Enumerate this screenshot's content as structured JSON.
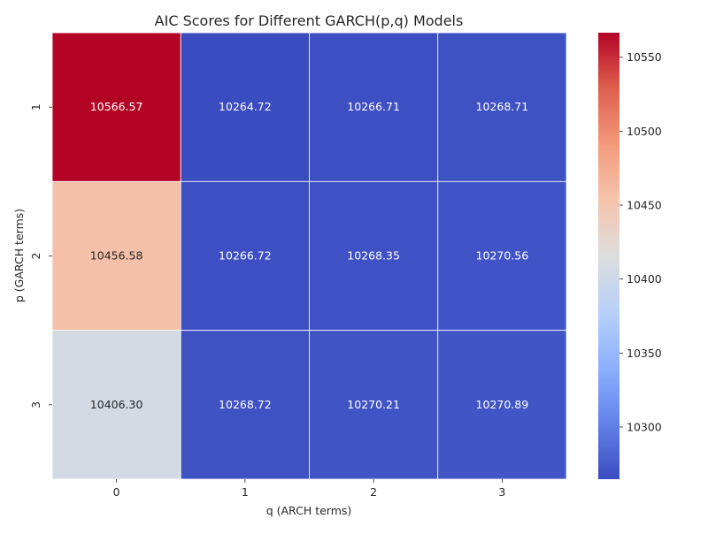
{
  "chart_data": {
    "type": "heatmap",
    "title": "AIC Scores for Different GARCH(p,q) Models",
    "xlabel": "q (ARCH terms)",
    "ylabel": "p (GARCH terms)",
    "x_categories": [
      "0",
      "1",
      "2",
      "3"
    ],
    "y_categories": [
      "1",
      "2",
      "3"
    ],
    "values": [
      [
        10566.57,
        10264.72,
        10266.71,
        10268.71
      ],
      [
        10456.58,
        10266.72,
        10268.35,
        10270.56
      ],
      [
        10406.3,
        10268.72,
        10270.21,
        10270.89
      ]
    ],
    "value_format": "0.00",
    "colormap": "coolwarm",
    "colorbar": {
      "vmin": 10264.72,
      "vmax": 10566.57,
      "ticks": [
        10300,
        10350,
        10400,
        10450,
        10500,
        10550
      ]
    },
    "cell_border_color": "#ffffff",
    "annotation_colors": {
      "light": "#ffffff",
      "dark": "#262626"
    }
  }
}
